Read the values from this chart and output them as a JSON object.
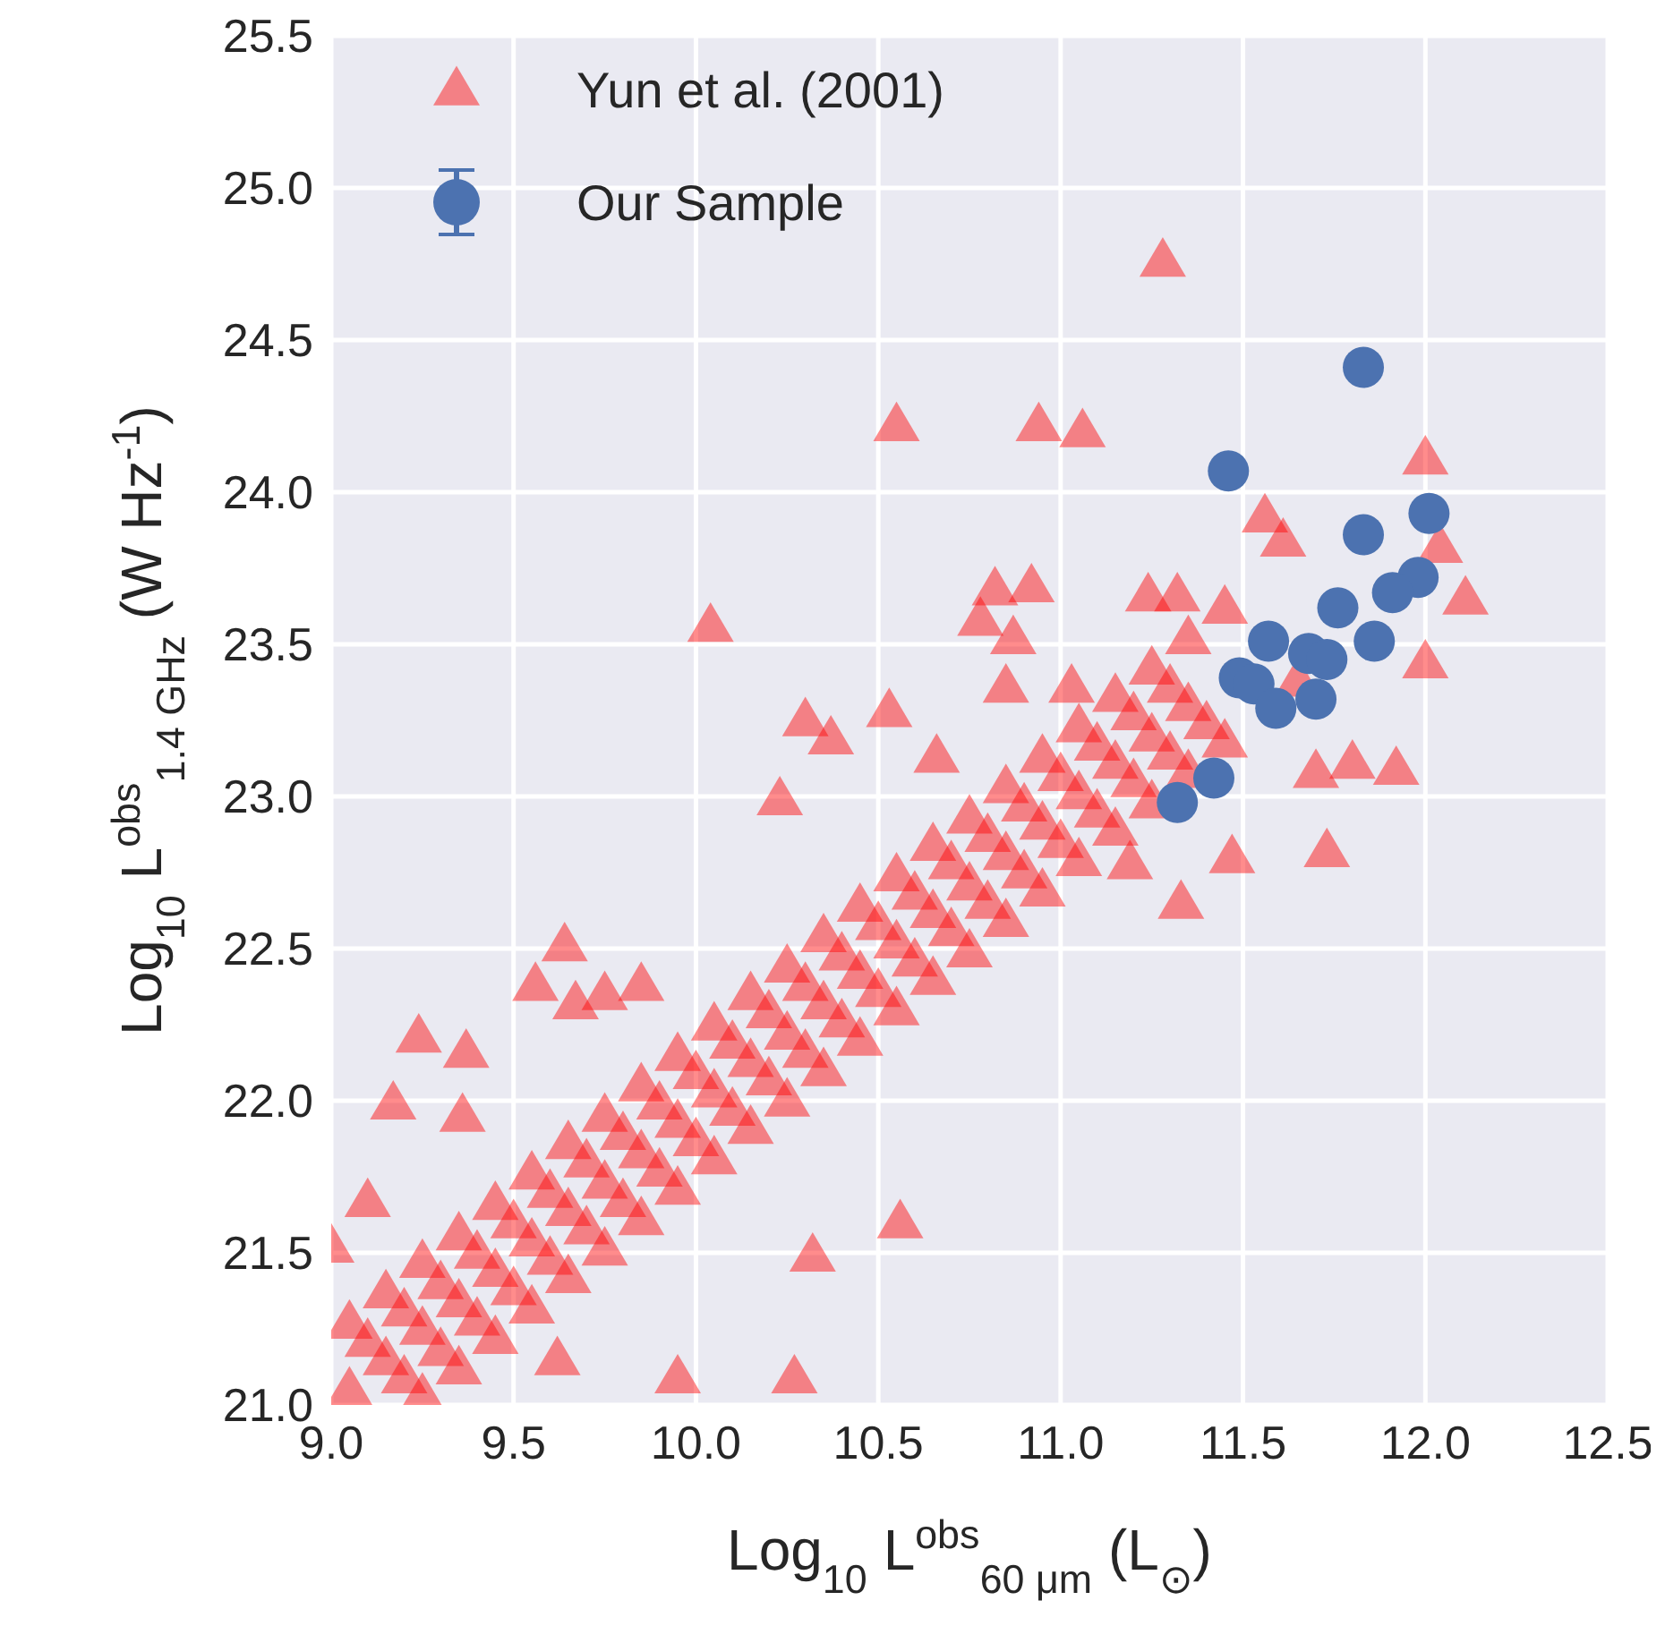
{
  "chart_data": {
    "type": "scatter",
    "xlabel": "Log$_{10}$ L$^{obs}$$_{60 μm}$ (L$_{⊙}$)",
    "ylabel": "Log$_{10}$ L$^{obs}$$_{1.4 GHz}$ (W Hz$^{-1}$)",
    "xlim": [
      9,
      12.5
    ],
    "ylim": [
      21,
      25.5
    ],
    "xticks": [
      {
        "value": 9,
        "label": "9.0"
      },
      {
        "value": 9.5,
        "label": "9.5"
      },
      {
        "value": 10,
        "label": "10.0"
      },
      {
        "value": 10.5,
        "label": "10.5"
      },
      {
        "value": 11,
        "label": "11.0"
      },
      {
        "value": 11.5,
        "label": "11.5"
      },
      {
        "value": 12,
        "label": "12.0"
      },
      {
        "value": 12.5,
        "label": "12.5"
      }
    ],
    "yticks": [
      {
        "value": 21,
        "label": "21.0"
      },
      {
        "value": 21.5,
        "label": "21.5"
      },
      {
        "value": 22,
        "label": "22.0"
      },
      {
        "value": 22.5,
        "label": "22.5"
      },
      {
        "value": 23,
        "label": "23.0"
      },
      {
        "value": 23.5,
        "label": "23.5"
      },
      {
        "value": 24,
        "label": "24.0"
      },
      {
        "value": 24.5,
        "label": "24.5"
      },
      {
        "value": 25,
        "label": "25.0"
      },
      {
        "value": 25.5,
        "label": "25.5"
      }
    ],
    "grid": true,
    "legend": "top left",
    "series": [
      {
        "name": "Yun et al. (2001)",
        "color": "#ff0000",
        "marker": "triangle",
        "x": [
          11.28,
          10.55,
          10.94,
          11.06,
          10.04,
          9.0,
          9.24,
          9.37,
          9.17,
          9.36,
          9.1,
          9.64,
          9.56,
          9.67,
          9.75,
          9.85,
          10.32,
          10.56,
          9.95,
          9.62,
          10.27,
          11.73,
          11.92,
          11.8,
          11.7,
          12.0,
          12.11,
          12.0,
          12.04,
          11.56,
          11.61,
          11.19,
          11.33,
          11.47,
          10.82,
          10.92,
          10.78,
          10.87,
          11.24,
          11.32,
          10.3,
          10.53,
          10.23,
          10.66,
          10.37,
          11.03,
          10.85,
          9.05,
          9.05,
          9.15,
          9.15,
          9.25,
          9.25,
          9.25,
          9.35,
          9.35,
          9.35,
          9.45,
          9.45,
          9.45,
          9.55,
          9.55,
          9.55,
          9.65,
          9.65,
          9.65,
          9.75,
          9.75,
          9.75,
          9.85,
          9.85,
          9.85,
          9.95,
          9.95,
          9.95,
          10.05,
          10.05,
          10.05,
          10.15,
          10.15,
          10.15,
          10.25,
          10.25,
          10.25,
          10.35,
          10.35,
          10.35,
          10.45,
          10.45,
          10.45,
          10.55,
          10.55,
          10.55,
          10.65,
          10.65,
          10.65,
          10.75,
          10.75,
          10.75,
          10.85,
          10.85,
          10.85,
          10.95,
          10.95,
          10.95,
          11.05,
          11.05,
          11.05,
          11.15,
          11.15,
          11.15,
          11.25,
          11.25,
          11.25,
          11.35,
          11.35,
          11.35,
          11.45,
          11.45,
          11.65,
          9.1,
          9.2,
          9.2,
          9.3,
          9.3,
          9.4,
          9.4,
          9.5,
          9.5,
          9.6,
          9.6,
          9.7,
          9.7,
          9.8,
          9.8,
          9.9,
          9.9,
          10.0,
          10.0,
          10.1,
          10.1,
          10.2,
          10.2,
          10.3,
          10.3,
          10.4,
          10.4,
          10.5,
          10.5,
          10.6,
          10.6,
          10.7,
          10.7,
          10.8,
          10.8,
          10.9,
          10.9,
          11.0,
          11.0,
          11.1,
          11.1,
          11.2,
          11.2,
          11.3,
          11.3,
          11.4
        ],
        "values": [
          24.76,
          24.22,
          24.22,
          24.2,
          23.56,
          21.52,
          22.21,
          22.16,
          21.99,
          21.95,
          21.67,
          22.51,
          22.38,
          22.32,
          22.35,
          22.38,
          21.49,
          21.6,
          21.09,
          21.15,
          21.09,
          22.82,
          23.09,
          23.11,
          23.08,
          23.44,
          23.65,
          24.11,
          23.82,
          23.92,
          23.84,
          22.78,
          22.65,
          22.8,
          23.68,
          23.69,
          23.58,
          23.52,
          23.66,
          23.66,
          23.25,
          23.28,
          22.99,
          23.13,
          23.19,
          23.36,
          23.36,
          21.05,
          21.27,
          21.15,
          21.37,
          21.03,
          21.25,
          21.47,
          21.12,
          21.34,
          21.56,
          21.22,
          21.44,
          21.66,
          21.32,
          21.54,
          21.76,
          21.42,
          21.64,
          21.86,
          21.51,
          21.73,
          21.95,
          21.61,
          21.83,
          22.05,
          21.71,
          21.93,
          22.15,
          21.81,
          22.03,
          22.25,
          21.91,
          22.13,
          22.35,
          22.0,
          22.22,
          22.44,
          22.1,
          22.32,
          22.54,
          22.2,
          22.42,
          22.64,
          22.3,
          22.52,
          22.74,
          22.4,
          22.62,
          22.84,
          22.49,
          22.71,
          22.93,
          22.59,
          22.81,
          23.03,
          22.69,
          22.91,
          23.13,
          22.79,
          23.01,
          23.23,
          22.89,
          23.11,
          23.33,
          22.98,
          23.2,
          23.42,
          23.08,
          23.3,
          23.52,
          23.18,
          23.62,
          23.38,
          21.21,
          21.09,
          21.31,
          21.18,
          21.4,
          21.28,
          21.5,
          21.38,
          21.6,
          21.48,
          21.7,
          21.58,
          21.8,
          21.67,
          21.89,
          21.77,
          21.99,
          21.87,
          22.09,
          21.97,
          22.19,
          22.07,
          22.29,
          22.16,
          22.38,
          22.26,
          22.48,
          22.36,
          22.58,
          22.46,
          22.68,
          22.56,
          22.78,
          22.65,
          22.87,
          22.75,
          22.97,
          22.85,
          23.07,
          22.95,
          23.17,
          23.05,
          23.27,
          23.14,
          23.36,
          23.24
        ]
      },
      {
        "name": "Our Sample",
        "color": "#4c72b0",
        "marker": "circle",
        "x": [
          11.83,
          11.46,
          11.83,
          12.01,
          11.98,
          11.91,
          11.76,
          11.86,
          11.57,
          11.68,
          11.73,
          11.49,
          11.53,
          11.59,
          11.7,
          11.42,
          11.32
        ],
        "values": [
          24.41,
          24.07,
          23.86,
          23.93,
          23.72,
          23.67,
          23.62,
          23.51,
          23.51,
          23.47,
          23.45,
          23.39,
          23.37,
          23.29,
          23.32,
          23.06,
          22.98
        ]
      }
    ]
  }
}
